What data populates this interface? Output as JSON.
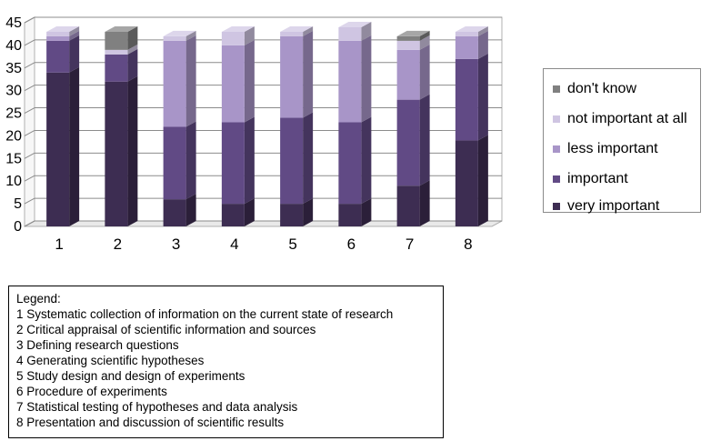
{
  "chart_data": {
    "type": "bar",
    "stacked": true,
    "three_d": true,
    "categories": [
      "1",
      "2",
      "3",
      "4",
      "5",
      "6",
      "7",
      "8"
    ],
    "ylim": [
      0,
      45
    ],
    "yticks": [
      "0",
      "5",
      "10",
      "15",
      "20",
      "25",
      "30",
      "35",
      "40",
      "45"
    ],
    "grid": true,
    "legend_position": "right",
    "series": [
      {
        "name": "very important",
        "color": "#3d2d52",
        "values": [
          34,
          32,
          6,
          5,
          5,
          5,
          9,
          19
        ]
      },
      {
        "name": "important",
        "color": "#614a85",
        "values": [
          7,
          6,
          16,
          18,
          19,
          18,
          19,
          18
        ]
      },
      {
        "name": "less important",
        "color": "#a895c8",
        "values": [
          1,
          0,
          19,
          17,
          18,
          18,
          11,
          5
        ]
      },
      {
        "name": "not important at all",
        "color": "#cfc5e2",
        "values": [
          1,
          1,
          1,
          3,
          1,
          3,
          2,
          1
        ]
      },
      {
        "name": "don't know",
        "color": "#808080",
        "values": [
          0,
          4,
          0,
          0,
          0,
          0,
          1,
          0
        ]
      }
    ],
    "legend_order": [
      "don't know",
      "not important at all",
      "less important",
      "important",
      "very important"
    ]
  },
  "notes": {
    "title": "Legend:",
    "lines": [
      "1 Systematic collection of information on the current state of research",
      "2 Critical appraisal of scientific information and sources",
      "3 Defining research questions",
      "4 Generating scientific hypotheses",
      "5 Study design and design of experiments",
      "6 Procedure of experiments",
      "7 Statistical testing of hypotheses and data analysis",
      "8 Presentation and discussion of scientific results"
    ]
  }
}
